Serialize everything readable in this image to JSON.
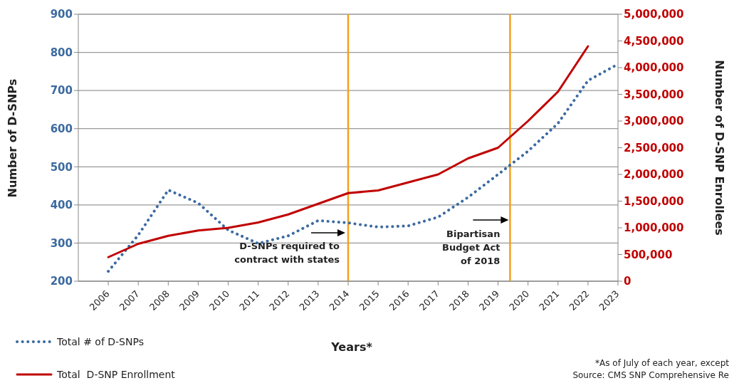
{
  "chart_data": {
    "type": "line",
    "x": [
      2006,
      2007,
      2008,
      2009,
      2010,
      2011,
      2012,
      2013,
      2014,
      2015,
      2016,
      2017,
      2018,
      2019,
      2020,
      2021,
      2022,
      2023
    ],
    "series": [
      {
        "name": "Total # of D-SNPs",
        "color": "#3b6aa0",
        "line_style": "dotted",
        "values": [
          226,
          321,
          439,
          405,
          334,
          299,
          319,
          359,
          353,
          342,
          345,
          368,
          420,
          480,
          541,
          614,
          726,
          769
        ]
      },
      {
        "name": "Total  D-SNP Enrollment",
        "color": "#c00000",
        "line_style": "solid",
        "axis": "y2",
        "values": [
          450000,
          700000,
          850000,
          950000,
          1000000,
          1100000,
          1250000,
          1450000,
          1650000,
          1700000,
          1850000,
          2000000,
          2300000,
          2500000,
          3000000,
          3550000,
          4400000,
          null
        ]
      }
    ],
    "xlabel": "Years*",
    "ylabel": "Number of D-SNPs",
    "y2label": "Number of D-SNP Enrollees",
    "xlim": [
      2005,
      2023
    ],
    "xticks": [
      2006,
      2007,
      2008,
      2009,
      2010,
      2011,
      2012,
      2013,
      2014,
      2015,
      2016,
      2017,
      2018,
      2019,
      2020,
      2021,
      2022,
      2023
    ],
    "ylim": [
      200,
      900
    ],
    "yticks": [
      200,
      300,
      400,
      500,
      600,
      700,
      800,
      900
    ],
    "y2lim": [
      0,
      5000000
    ],
    "y2ticks": [
      0,
      {
        "value": 500000,
        "label": "500,000"
      },
      {
        "value": 1000000,
        "label": "1,000,000"
      },
      {
        "value": 1500000,
        "label": "1,500,000"
      },
      {
        "value": 2000000,
        "label": "2,000,000"
      },
      {
        "value": 2500000,
        "label": "2,500,000"
      },
      {
        "value": 3000000,
        "label": "3,000,000"
      },
      {
        "value": 3500000,
        "label": "3,500,000"
      },
      {
        "value": 4000000,
        "label": "4,000,000"
      },
      {
        "value": 4500000,
        "label": "4,500,000"
      },
      {
        "value": 5000000,
        "label": "5,000,000"
      }
    ],
    "ref_lines": [
      {
        "axis": "x",
        "value": 2014,
        "label": "D-SNPs required to contract with states",
        "color": "#f5a01a"
      },
      {
        "axis": "x",
        "value": 2019.4,
        "label": "Bipartisan Budget Act of 2018",
        "color": "#f5a01a"
      }
    ],
    "annotations": [
      "*As of July of each year, except",
      "Source: CMS SNP Comprehensive Re"
    ],
    "grid": "y",
    "legend": "bottom left",
    "marker": "none"
  }
}
